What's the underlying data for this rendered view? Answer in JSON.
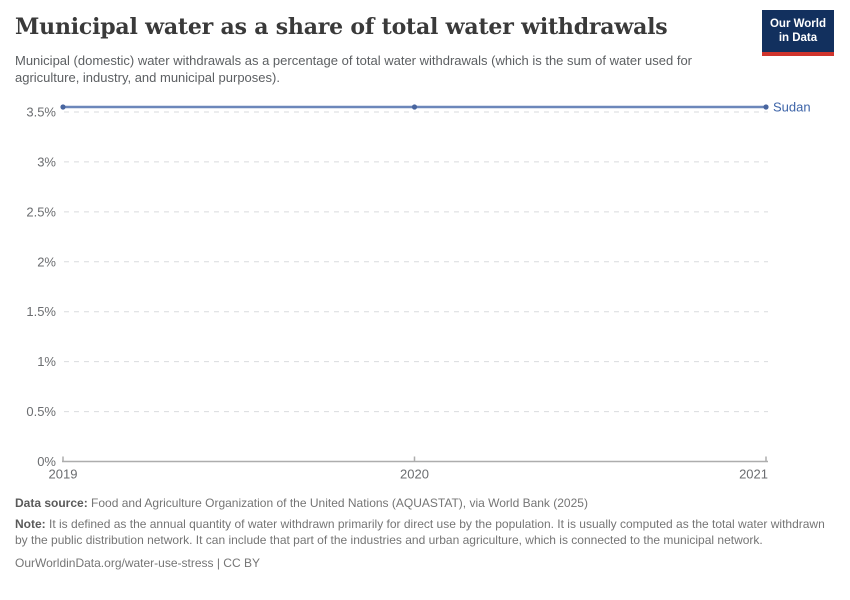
{
  "header": {
    "title": "Municipal water as a share of total water withdrawals",
    "subtitle": "Municipal (domestic) water withdrawals as a percentage of total water withdrawals (which is the sum of water used for agriculture, industry, and municipal purposes)."
  },
  "logo": {
    "line1": "Our World",
    "line2": "in Data",
    "bg_color": "#12305e",
    "accent_color": "#d0342c"
  },
  "chart_data": {
    "type": "line",
    "title": "Municipal water as a share of total water withdrawals",
    "x": [
      2019,
      2020,
      2021
    ],
    "xtick_labels": [
      "2019",
      "2020",
      "2021"
    ],
    "series": [
      {
        "name": "Sudan",
        "values": [
          3.55,
          3.55,
          3.55
        ],
        "color": "#6c87ba",
        "point_color": "#48659f",
        "label_color": "#3d64a8"
      }
    ],
    "xlabel": "",
    "ylabel": "",
    "ylim": [
      0,
      3.5
    ],
    "yticks": [
      0,
      0.5,
      1,
      1.5,
      2,
      2.5,
      3,
      3.5
    ],
    "ytick_labels": [
      "0%",
      "0.5%",
      "1%",
      "1.5%",
      "2%",
      "2.5%",
      "3%",
      "3.5%"
    ],
    "grid": "horizontal-dashed",
    "grid_color": "#d9dbde",
    "axis_color": "#adadad",
    "tick_label_color": "#6b6d70",
    "legend_position": "right-of-line"
  },
  "footer": {
    "data_source_label": "Data source:",
    "data_source": "Food and Agriculture Organization of the United Nations (AQUASTAT), via World Bank (2025)",
    "note_label": "Note:",
    "note": "It is defined as the annual quantity of water withdrawn primarily for direct use by the population. It is usually computed as the total water withdrawn by the public distribution network. It can include that part of the industries and urban agriculture, which is connected to the municipal network.",
    "url": "OurWorldinData.org/water-use-stress | CC BY"
  }
}
